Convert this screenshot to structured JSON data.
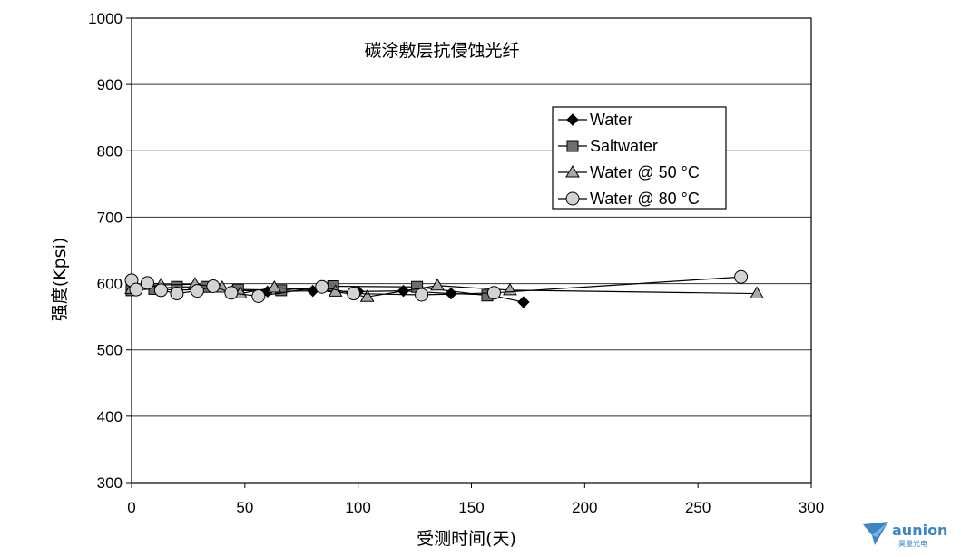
{
  "chart_data": {
    "type": "scatter",
    "annotation": "碳涂敷层抗侵蚀光纤",
    "xlabel": "受测时间(天)",
    "ylabel": "强度(Kpsi)",
    "xlim": [
      0,
      300
    ],
    "ylim": [
      300,
      1000
    ],
    "xticks": [
      "0",
      "50",
      "100",
      "150",
      "200",
      "250",
      "300"
    ],
    "yticks": [
      "300",
      "400",
      "500",
      "600",
      "700",
      "800",
      "900",
      "1000"
    ],
    "grid": "horizontal",
    "legend_position": "top-right",
    "series": [
      {
        "name": "Water",
        "marker": "diamond",
        "color": "#000000",
        "x": [
          0,
          10,
          20,
          30,
          45,
          60,
          80,
          100,
          120,
          141,
          158,
          173
        ],
        "y": [
          590,
          592,
          590,
          591,
          590,
          588,
          589,
          588,
          589,
          585,
          583,
          572
        ]
      },
      {
        "name": "Saltwater",
        "marker": "square",
        "color": "#6e6e6e",
        "x": [
          0,
          10,
          20,
          33,
          47,
          66,
          89,
          126,
          157
        ],
        "y": [
          590,
          592,
          595,
          595,
          591,
          590,
          596,
          595,
          582
        ]
      },
      {
        "name": "Water @ 50 °C",
        "marker": "triangle",
        "color": "#a8a8a8",
        "x": [
          0,
          13,
          28,
          40,
          48,
          63,
          90,
          104,
          135,
          167,
          276
        ],
        "y": [
          592,
          598,
          599,
          594,
          585,
          594,
          588,
          580,
          597,
          590,
          585
        ]
      },
      {
        "name": "Water @ 80 °C",
        "marker": "circle",
        "color": "#d3d3d3",
        "x": [
          0,
          2,
          7,
          13,
          20,
          29,
          36,
          44,
          56,
          84,
          98,
          128,
          160,
          269
        ],
        "y": [
          605,
          591,
          601,
          590,
          585,
          589,
          596,
          586,
          581,
          595,
          585,
          583,
          586,
          610
        ]
      }
    ]
  },
  "logo": {
    "icon": "paper-plane-icon",
    "name": "aunion",
    "subtitle": "昊量光电",
    "color": "#3d86c6"
  }
}
